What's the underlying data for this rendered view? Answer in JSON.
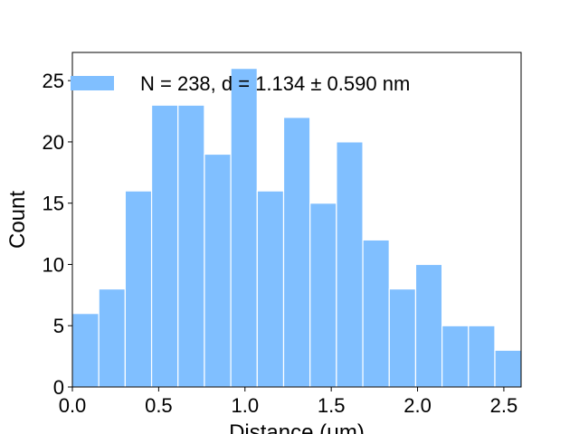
{
  "chart_data": {
    "type": "bar",
    "title": "",
    "xlabel": "Distance (μm)",
    "ylabel": "Count",
    "xlim": [
      0.0,
      2.6
    ],
    "ylim": [
      0,
      27.3
    ],
    "xticks": [
      "0.0",
      "0.5",
      "1.0",
      "1.5",
      "2.0",
      "2.5"
    ],
    "xtick_values": [
      0.0,
      0.5,
      1.0,
      1.5,
      2.0,
      2.5
    ],
    "yticks": [
      "0",
      "5",
      "10",
      "15",
      "20",
      "25"
    ],
    "ytick_values": [
      0,
      5,
      10,
      15,
      20,
      25
    ],
    "bin_width": 0.153,
    "bin_edges": [
      0.0,
      0.153,
      0.306,
      0.459,
      0.612,
      0.765,
      0.918,
      1.071,
      1.224,
      1.377,
      1.53,
      1.683,
      1.836,
      1.989,
      2.142,
      2.295,
      2.448,
      2.601
    ],
    "values": [
      6,
      8,
      16,
      23,
      23,
      19,
      26,
      16,
      22,
      15,
      20,
      12,
      8,
      10,
      5,
      5,
      3
    ],
    "bar_color": "#80bfff",
    "edge_color": "#ffffff",
    "grid": false,
    "legend": {
      "placement": "upper-left",
      "entries": [
        "N = 238, d = 1.134 ± 0.590 nm"
      ]
    }
  }
}
